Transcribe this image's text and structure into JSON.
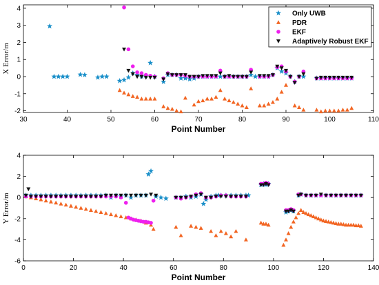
{
  "colors": {
    "uwb": "#1a8fc9",
    "pdr": "#f26522",
    "ekf": "#ee20ee",
    "arekf": "#111111"
  },
  "legend": {
    "location": "top-right",
    "entries": [
      {
        "label": "Only UWB",
        "marker": "star",
        "color": "#1a8fc9"
      },
      {
        "label": "PDR",
        "marker": "triangle-up",
        "color": "#f26522"
      },
      {
        "label": "EKF",
        "marker": "circle",
        "color": "#ee20ee"
      },
      {
        "label": "Adaptively Robust EKF",
        "marker": "triangle-down",
        "color": "#111111"
      }
    ]
  },
  "chart_data": [
    {
      "type": "scatter",
      "xlabel": "Point Number",
      "ylabel": "X Error/m",
      "xlim": [
        30,
        110
      ],
      "ylim": [
        -2.1,
        4.2
      ],
      "xticks": [
        30,
        40,
        50,
        60,
        70,
        80,
        90,
        100,
        110
      ],
      "yticks": [
        -2,
        -1,
        0,
        1,
        2,
        3,
        4
      ],
      "grid": false,
      "series": [
        {
          "name": "Only UWB",
          "marker": "star",
          "x": [
            36,
            37,
            38,
            39,
            40,
            43,
            44,
            47,
            48,
            49,
            52,
            53,
            54,
            55,
            56,
            57,
            58,
            59,
            60,
            62,
            63,
            64,
            65,
            66,
            67,
            68,
            69,
            70,
            71,
            72,
            73,
            74,
            75,
            76,
            77,
            78,
            79,
            80,
            81,
            82,
            83,
            84,
            85,
            86,
            87,
            88,
            89,
            90,
            91,
            92,
            93,
            94,
            97,
            98,
            99,
            100,
            101,
            102,
            103,
            104,
            105
          ],
          "y": [
            2.95,
            0.0,
            0.0,
            0.0,
            0.0,
            0.12,
            0.1,
            -0.05,
            0.0,
            0.0,
            -0.25,
            -0.2,
            -0.05,
            0.2,
            0.1,
            0.0,
            0.05,
            0.8,
            0.0,
            -0.3,
            0.1,
            0.1,
            0.1,
            -0.1,
            -0.1,
            -0.15,
            -0.1,
            0.0,
            0.0,
            0.0,
            0.0,
            0.0,
            0.0,
            0.0,
            0.0,
            0.0,
            0.0,
            0.0,
            0.0,
            0.1,
            0.0,
            0.0,
            0.0,
            0.0,
            0.1,
            0.5,
            0.3,
            0.2,
            0.0,
            -0.3,
            0.0,
            0.0,
            -0.1,
            -0.1,
            -0.1,
            -0.1,
            -0.1,
            -0.1,
            -0.1,
            -0.1,
            -0.1
          ]
        },
        {
          "name": "PDR",
          "marker": "triangle-up",
          "x": [
            52,
            53,
            54,
            55,
            56,
            57,
            58,
            59,
            60,
            62,
            63,
            64,
            65,
            66,
            67,
            69,
            70,
            71,
            72,
            73,
            74,
            75,
            76,
            77,
            78,
            79,
            80,
            81,
            82,
            84,
            85,
            86,
            87,
            88,
            89,
            90,
            92,
            93,
            94,
            97,
            98,
            99,
            100,
            101,
            102,
            103,
            104,
            105
          ],
          "y": [
            -0.8,
            -0.95,
            -1.05,
            -1.15,
            -1.2,
            -1.3,
            -1.3,
            -1.3,
            -1.3,
            -1.75,
            -1.85,
            -1.9,
            -2.0,
            -2.05,
            -1.25,
            -1.65,
            -1.45,
            -1.4,
            -1.3,
            -1.3,
            -1.2,
            -0.8,
            -1.3,
            -1.4,
            -1.5,
            -1.6,
            -1.7,
            -1.8,
            -0.7,
            -1.7,
            -1.7,
            -1.6,
            -1.5,
            -1.3,
            -0.9,
            -0.5,
            -1.7,
            -1.8,
            -1.95,
            -1.95,
            -2.05,
            -2.0,
            -2.0,
            -2.0,
            -2.0,
            -1.95,
            -1.95,
            -1.85
          ]
        },
        {
          "name": "EKF",
          "marker": "circle",
          "x": [
            53,
            54,
            55,
            56,
            57,
            58,
            59,
            60,
            62,
            63,
            64,
            65,
            66,
            67,
            68,
            69,
            70,
            71,
            72,
            73,
            74,
            75,
            76,
            77,
            78,
            79,
            80,
            81,
            82,
            84,
            85,
            86,
            87,
            88,
            89,
            90,
            91,
            92,
            93,
            94,
            97,
            98,
            99,
            100,
            101,
            102,
            103,
            104,
            105
          ],
          "y": [
            4.05,
            1.6,
            0.6,
            0.25,
            0.2,
            0.1,
            0.05,
            0.0,
            -0.1,
            0.2,
            0.1,
            0.1,
            0.1,
            0.05,
            0.0,
            0.0,
            0.0,
            0.0,
            0.0,
            0.0,
            0.0,
            0.35,
            0.0,
            0.0,
            0.0,
            0.0,
            0.0,
            0.0,
            0.4,
            0.0,
            0.0,
            0.0,
            0.1,
            0.55,
            0.6,
            0.3,
            0.0,
            -0.3,
            0.0,
            0.3,
            -0.1,
            -0.1,
            -0.1,
            -0.1,
            -0.1,
            -0.1,
            -0.1,
            -0.1,
            -0.1
          ]
        },
        {
          "name": "Adaptively Robust EKF",
          "marker": "triangle-down",
          "x": [
            53,
            54,
            55,
            56,
            57,
            58,
            59,
            60,
            62,
            63,
            64,
            65,
            66,
            67,
            68,
            69,
            70,
            71,
            72,
            73,
            74,
            75,
            76,
            77,
            78,
            79,
            80,
            81,
            82,
            84,
            85,
            86,
            87,
            88,
            89,
            90,
            91,
            92,
            93,
            94,
            97,
            98,
            99,
            100,
            101,
            102,
            103,
            104,
            105
          ],
          "y": [
            1.6,
            0.35,
            0.15,
            0.0,
            0.0,
            -0.05,
            -0.05,
            -0.05,
            -0.15,
            0.15,
            0.1,
            0.1,
            0.1,
            0.1,
            0.0,
            0.0,
            0.0,
            0.05,
            0.05,
            0.05,
            0.05,
            0.2,
            0.0,
            0.05,
            0.0,
            0.0,
            0.0,
            0.0,
            0.25,
            0.05,
            0.05,
            0.05,
            0.1,
            0.6,
            0.5,
            0.35,
            0.0,
            -0.35,
            0.0,
            0.15,
            -0.1,
            -0.05,
            -0.05,
            -0.05,
            -0.05,
            -0.05,
            -0.05,
            -0.05,
            -0.05
          ]
        }
      ]
    },
    {
      "type": "scatter",
      "xlabel": "Point Number",
      "ylabel": "Y Error/m",
      "xlim": [
        0,
        140
      ],
      "ylim": [
        -6,
        4
      ],
      "xticks": [
        0,
        20,
        40,
        60,
        80,
        100,
        120,
        140
      ],
      "yticks": [
        -6,
        -4,
        -2,
        0,
        2,
        4
      ],
      "grid": false,
      "series": [
        {
          "name": "Only UWB",
          "marker": "star",
          "x": [
            1,
            3,
            5,
            7,
            9,
            11,
            13,
            15,
            17,
            19,
            21,
            23,
            25,
            27,
            29,
            31,
            33,
            35,
            37,
            39,
            41,
            43,
            45,
            47,
            49,
            50,
            51,
            53,
            55,
            57,
            61,
            63,
            65,
            67,
            69,
            71,
            72,
            73,
            75,
            77,
            78,
            79,
            81,
            83,
            85,
            87,
            89,
            90,
            95,
            96,
            97,
            98,
            105,
            106,
            107,
            108,
            110,
            111,
            113,
            115,
            117,
            119,
            121,
            123,
            125,
            127,
            129,
            131,
            133,
            135
          ],
          "y": [
            0.2,
            0.2,
            0.2,
            0.2,
            0.2,
            0.2,
            0.2,
            0.2,
            0.2,
            0.2,
            0.2,
            0.2,
            0.2,
            0.2,
            0.2,
            0.2,
            0.2,
            0.0,
            0.2,
            0.1,
            0.2,
            0.0,
            0.2,
            0.2,
            0.2,
            2.2,
            2.5,
            0.1,
            0.0,
            -0.1,
            0.0,
            0.0,
            0.1,
            0.0,
            0.1,
            0.3,
            -0.6,
            -0.2,
            0.1,
            0.2,
            0.2,
            0.2,
            0.2,
            0.2,
            0.2,
            0.2,
            0.2,
            0.2,
            1.2,
            1.3,
            1.2,
            1.3,
            -1.4,
            -1.3,
            -1.2,
            -1.3,
            0.2,
            0.3,
            0.2,
            0.2,
            0.2,
            0.2,
            0.2,
            0.2,
            0.2,
            0.2,
            0.2,
            0.2,
            0.2,
            0.2
          ]
        },
        {
          "name": "PDR",
          "marker": "triangle-up",
          "x": [
            1,
            3,
            5,
            7,
            9,
            11,
            13,
            15,
            17,
            19,
            21,
            23,
            25,
            27,
            29,
            31,
            33,
            35,
            37,
            39,
            41,
            43,
            45,
            47,
            49,
            51,
            52,
            61,
            63,
            67,
            69,
            71,
            75,
            77,
            79,
            81,
            83,
            85,
            89,
            95,
            96,
            97,
            98,
            104,
            105,
            106,
            107,
            108,
            109,
            110,
            111,
            112,
            113,
            114,
            115,
            116,
            117,
            118,
            119,
            120,
            121,
            122,
            123,
            124,
            125,
            126,
            127,
            128,
            129,
            130,
            131,
            132,
            133,
            134,
            135
          ],
          "y": [
            0.1,
            0.0,
            -0.1,
            -0.2,
            -0.3,
            -0.4,
            -0.5,
            -0.6,
            -0.7,
            -0.8,
            -0.9,
            -1.0,
            -1.1,
            -1.2,
            -1.3,
            -1.4,
            -1.5,
            -1.6,
            -1.7,
            -1.8,
            -1.9,
            -2.0,
            -2.1,
            -2.2,
            -2.4,
            -2.6,
            -3.0,
            -2.8,
            -3.6,
            -2.7,
            -2.8,
            -2.9,
            -3.2,
            -3.6,
            -3.2,
            -3.4,
            -3.7,
            -3.2,
            -4.0,
            -2.4,
            -2.5,
            -2.5,
            -2.6,
            -4.5,
            -4.0,
            -3.4,
            -2.8,
            -2.3,
            -1.9,
            -1.5,
            -1.2,
            -1.4,
            -1.5,
            -1.6,
            -1.7,
            -1.8,
            -1.9,
            -2.0,
            -2.1,
            -2.2,
            -2.25,
            -2.3,
            -2.35,
            -2.4,
            -2.45,
            -2.5,
            -2.5,
            -2.55,
            -2.6,
            -2.6,
            -2.6,
            -2.6,
            -2.65,
            -2.65,
            -2.7
          ]
        },
        {
          "name": "EKF",
          "marker": "circle",
          "x": [
            1,
            3,
            5,
            7,
            9,
            11,
            13,
            15,
            17,
            19,
            21,
            23,
            25,
            27,
            29,
            31,
            33,
            35,
            37,
            39,
            41,
            42,
            43,
            44,
            45,
            46,
            47,
            48,
            49,
            50,
            51,
            52,
            61,
            63,
            65,
            67,
            69,
            71,
            73,
            75,
            77,
            79,
            81,
            83,
            85,
            87,
            89,
            95,
            96,
            97,
            98,
            105,
            106,
            107,
            108,
            110,
            111,
            113,
            115,
            117,
            119,
            121,
            123,
            125,
            127,
            129,
            131,
            133,
            135
          ],
          "y": [
            0.1,
            0.1,
            0.1,
            0.1,
            0.1,
            0.1,
            0.1,
            0.1,
            0.1,
            0.1,
            0.1,
            0.1,
            0.1,
            0.1,
            0.1,
            0.1,
            0.1,
            0.1,
            0.1,
            0.0,
            -0.5,
            -1.9,
            -2.0,
            -2.1,
            -2.15,
            -2.2,
            -2.25,
            -2.3,
            -2.3,
            -2.35,
            -2.4,
            -0.3,
            0.0,
            -0.1,
            0.0,
            0.1,
            0.3,
            0.4,
            0.0,
            0.0,
            0.1,
            0.2,
            0.2,
            0.1,
            0.1,
            0.1,
            0.1,
            1.3,
            1.3,
            1.4,
            1.3,
            -1.2,
            -1.2,
            -1.1,
            -1.2,
            0.3,
            0.3,
            0.2,
            0.2,
            0.2,
            0.2,
            0.2,
            0.2,
            0.2,
            0.2,
            0.2,
            0.2,
            0.2,
            0.2
          ]
        },
        {
          "name": "Adaptively Robust EKF",
          "marker": "triangle-down",
          "x": [
            1,
            2,
            3,
            5,
            7,
            9,
            11,
            13,
            15,
            17,
            19,
            21,
            23,
            25,
            27,
            29,
            31,
            33,
            35,
            37,
            39,
            41,
            43,
            45,
            47,
            49,
            51,
            53,
            61,
            63,
            65,
            67,
            69,
            71,
            73,
            75,
            77,
            79,
            81,
            83,
            85,
            87,
            89,
            95,
            96,
            97,
            98,
            105,
            106,
            107,
            108,
            110,
            111,
            113,
            115,
            117,
            119,
            121,
            123,
            125,
            127,
            129,
            131,
            133,
            135
          ],
          "y": [
            0.2,
            0.8,
            0.1,
            0.1,
            0.1,
            0.1,
            0.1,
            0.1,
            0.1,
            0.1,
            0.1,
            0.1,
            0.1,
            0.1,
            0.1,
            0.1,
            0.1,
            0.2,
            0.2,
            0.2,
            0.2,
            0.2,
            0.2,
            0.2,
            0.2,
            0.2,
            0.3,
            0.2,
            0.0,
            0.0,
            0.0,
            0.1,
            0.2,
            0.3,
            0.0,
            0.0,
            0.1,
            0.1,
            0.1,
            0.1,
            0.1,
            0.1,
            0.1,
            1.2,
            1.2,
            1.3,
            1.2,
            -1.3,
            -1.3,
            -1.2,
            -1.3,
            0.2,
            0.3,
            0.2,
            0.2,
            0.2,
            0.3,
            0.2,
            0.2,
            0.2,
            0.2,
            0.2,
            0.2,
            0.2,
            0.2
          ]
        }
      ]
    }
  ]
}
